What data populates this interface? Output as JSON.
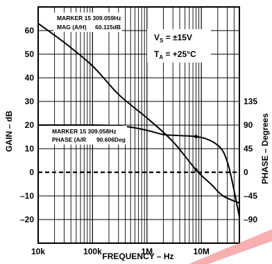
{
  "chart_data": {
    "type": "line",
    "xlabel": "FREQUENCY – Hz",
    "ylabel": "GAIN – dB",
    "y2label": "PHASE – Degrees",
    "x_scale": "log",
    "xlim": [
      10000,
      50000000
    ],
    "ylim": [
      -30,
      70
    ],
    "y2lim": [
      -135,
      315
    ],
    "x_ticks": [
      10000,
      100000,
      1000000,
      10000000
    ],
    "x_tick_labels": [
      "10k",
      "100k",
      "1M",
      "10M"
    ],
    "y_ticks": [
      60,
      50,
      40,
      30,
      20,
      10,
      0,
      -10,
      -20
    ],
    "y_tick_labels": [
      "60",
      "50",
      "40",
      "30",
      "20",
      "10",
      "0",
      "–10",
      "–20"
    ],
    "y2_ticks": [
      135,
      90,
      45,
      0,
      -45,
      -90
    ],
    "y2_tick_labels": [
      "135",
      "90",
      "45",
      "0",
      "–45",
      "–90"
    ],
    "grid": true,
    "series": [
      {
        "key": "gain",
        "axis": "left",
        "x": [
          10000,
          30000,
          100000,
          300000,
          1000000,
          3000000,
          8000000,
          15000000,
          25000000,
          50000000
        ],
        "y": [
          63,
          55,
          45,
          33,
          23,
          13,
          1,
          -5,
          -10,
          -13
        ]
      },
      {
        "key": "phase",
        "axis": "right",
        "x": [
          10000,
          100000,
          250000,
          500000,
          1000000,
          2000000,
          4000000,
          8000000,
          12000000,
          18000000,
          25000000,
          32000000,
          40000000,
          50000000
        ],
        "y": [
          90,
          90,
          89,
          86,
          80,
          72,
          70,
          68,
          64,
          55,
          40,
          10,
          -35,
          -85
        ]
      },
      {
        "key": "zero-reference",
        "axis": "left",
        "style": "dashed",
        "x": [
          10000,
          50000000
        ],
        "y": [
          0,
          0
        ]
      }
    ],
    "markers": [
      {
        "series": "phase",
        "x": 8000000,
        "y": 68
      },
      {
        "series": "gain",
        "x": 8000000,
        "y": 1
      }
    ],
    "annotations": {
      "top": {
        "line1": "MARKER  15  309.059Hz",
        "line2_label": "MAG (A/H)",
        "line2_value": "60.115dB"
      },
      "bottom": {
        "line1": "MARKER  15  309.058Hz",
        "line2_label": "PHASE (A/R",
        "line2_value": "90.606Deg"
      },
      "conditions": {
        "vs_main": "V",
        "vs_sub": "S",
        "vs_value": " = ±15V",
        "ta_main": "T",
        "ta_sub": "A",
        "ta_value": " = +25°C"
      }
    }
  }
}
